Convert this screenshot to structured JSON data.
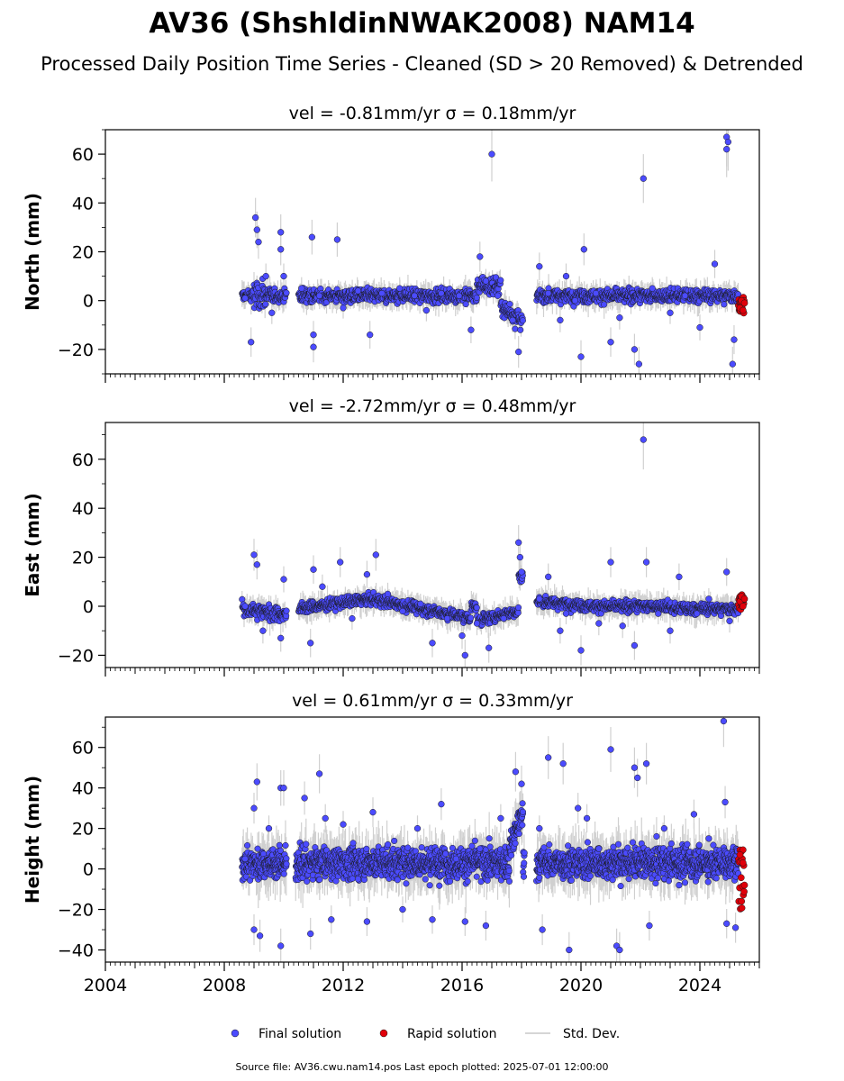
{
  "figure": {
    "title": "AV36 (ShshldinNWAK2008) NAM14",
    "subtitle": "Processed Daily Position Time Series - Cleaned (SD > 20 Removed) & Detrended",
    "footer": "Source file: AV36.cwu.nam14.pos  Last epoch plotted: 2025-07-01 12:00:00",
    "legend": [
      {
        "label": "Final solution",
        "color": "#4b4bff"
      },
      {
        "label": "Rapid solution",
        "color": "#e0000a"
      },
      {
        "label": "Std. Dev.",
        "color": "#cccccc"
      }
    ],
    "colors": {
      "final": "#4b4bff",
      "rapid": "#e0000a",
      "stddev": "#c8c8c8",
      "marker_edge": "#1a1a1a"
    }
  },
  "chart_data": [
    {
      "type": "scatter",
      "title": "vel = -0.81mm/yr   σ = 0.18mm/yr",
      "ylabel": "North (mm)",
      "xlim": [
        2004.0,
        2026.0
      ],
      "ylim": [
        -30,
        70
      ],
      "yticks": [
        -20,
        0,
        20,
        40,
        60
      ],
      "ytick_labels": [
        "−20",
        "0",
        "20",
        "40",
        "60"
      ],
      "xticks": [
        2004,
        2008,
        2012,
        2016,
        2020,
        2024
      ],
      "xtick_labels": [],
      "gaps": [
        [
          2010.1,
          2010.5
        ],
        [
          2018.05,
          2018.5
        ]
      ],
      "final_range": [
        2008.6,
        2025.3
      ],
      "rapid_range": [
        2025.3,
        2025.5
      ],
      "data_start": 2008.6,
      "data_end": 2025.5,
      "series": [
        {
          "name": "Final solution",
          "points": [
            [
              2008.7,
              1.0
            ],
            [
              2008.9,
              -17.0
            ],
            [
              2009.05,
              34.0
            ],
            [
              2009.1,
              29.0
            ],
            [
              2009.15,
              24.0
            ],
            [
              2009.4,
              10.0
            ],
            [
              2009.6,
              -5.0
            ],
            [
              2009.9,
              28.0
            ],
            [
              2009.9,
              21.0
            ],
            [
              2010.0,
              10.0
            ],
            [
              2010.6,
              5.0
            ],
            [
              2010.95,
              26.0
            ],
            [
              2011.0,
              -19.0
            ],
            [
              2011.0,
              -14.0
            ],
            [
              2011.2,
              2.0
            ],
            [
              2011.8,
              25.0
            ],
            [
              2012.0,
              -3.0
            ],
            [
              2012.5,
              4.0
            ],
            [
              2012.9,
              -14.0
            ],
            [
              2013.3,
              3.0
            ],
            [
              2013.9,
              5.0
            ],
            [
              2014.4,
              2.0
            ],
            [
              2014.8,
              -4.0
            ],
            [
              2015.3,
              3.0
            ],
            [
              2015.9,
              2.0
            ],
            [
              2016.3,
              -12.0
            ],
            [
              2016.6,
              18.0
            ],
            [
              2016.8,
              8.0
            ],
            [
              2017.0,
              60.0
            ],
            [
              2017.2,
              2.0
            ],
            [
              2017.7,
              -8.0
            ],
            [
              2017.9,
              -21.0
            ],
            [
              2018.6,
              14.0
            ],
            [
              2018.9,
              3.0
            ],
            [
              2019.3,
              -8.0
            ],
            [
              2019.5,
              10.0
            ],
            [
              2019.8,
              0.0
            ],
            [
              2020.0,
              -23.0
            ],
            [
              2020.1,
              21.0
            ],
            [
              2020.5,
              3.0
            ],
            [
              2021.0,
              -17.0
            ],
            [
              2021.3,
              -7.0
            ],
            [
              2021.8,
              -20.0
            ],
            [
              2021.95,
              -26.0
            ],
            [
              2022.1,
              50.0
            ],
            [
              2022.4,
              5.0
            ],
            [
              2023.0,
              -5.0
            ],
            [
              2023.5,
              2.0
            ],
            [
              2024.0,
              -11.0
            ],
            [
              2024.5,
              15.0
            ],
            [
              2024.9,
              67.0
            ],
            [
              2024.95,
              65.0
            ],
            [
              2024.9,
              62.0
            ],
            [
              2025.1,
              -26.0
            ],
            [
              2025.15,
              -16.0
            ]
          ]
        },
        {
          "name": "Rapid solution",
          "points": [
            [
              2025.35,
              -3.0
            ],
            [
              2025.4,
              0.0
            ],
            [
              2025.45,
              -4.0
            ],
            [
              2025.5,
              -1.0
            ]
          ]
        }
      ]
    },
    {
      "type": "scatter",
      "title": "vel = -2.72mm/yr   σ = 0.48mm/yr",
      "ylabel": "East (mm)",
      "xlim": [
        2004.0,
        2026.0
      ],
      "ylim": [
        -25,
        75
      ],
      "yticks": [
        -20,
        0,
        20,
        40,
        60
      ],
      "ytick_labels": [
        "−20",
        "0",
        "20",
        "40",
        "60"
      ],
      "xticks": [
        2004,
        2008,
        2012,
        2016,
        2020,
        2024
      ],
      "xtick_labels": [],
      "gaps": [
        [
          2010.1,
          2010.5
        ],
        [
          2018.05,
          2018.5
        ]
      ],
      "final_range": [
        2008.6,
        2025.3
      ],
      "rapid_range": [
        2025.3,
        2025.5
      ],
      "data_start": 2008.6,
      "data_end": 2025.5,
      "series": [
        {
          "name": "Final solution",
          "points": [
            [
              2008.7,
              0.0
            ],
            [
              2009.0,
              21.0
            ],
            [
              2009.1,
              17.0
            ],
            [
              2009.3,
              -10.0
            ],
            [
              2009.9,
              -13.0
            ],
            [
              2010.0,
              11.0
            ],
            [
              2010.9,
              -15.0
            ],
            [
              2011.0,
              15.0
            ],
            [
              2011.3,
              8.0
            ],
            [
              2011.9,
              18.0
            ],
            [
              2012.3,
              -5.0
            ],
            [
              2012.8,
              13.0
            ],
            [
              2013.1,
              21.0
            ],
            [
              2013.5,
              5.0
            ],
            [
              2014.0,
              -2.0
            ],
            [
              2014.6,
              1.0
            ],
            [
              2015.0,
              -15.0
            ],
            [
              2015.5,
              -5.0
            ],
            [
              2016.0,
              -12.0
            ],
            [
              2016.1,
              -20.0
            ],
            [
              2016.5,
              -7.0
            ],
            [
              2016.9,
              -17.0
            ],
            [
              2017.4,
              -5.0
            ],
            [
              2017.9,
              26.0
            ],
            [
              2017.95,
              20.0
            ],
            [
              2018.0,
              14.0
            ],
            [
              2018.6,
              3.0
            ],
            [
              2018.9,
              12.0
            ],
            [
              2019.3,
              -10.0
            ],
            [
              2019.5,
              -3.0
            ],
            [
              2020.0,
              -18.0
            ],
            [
              2020.6,
              -7.0
            ],
            [
              2021.0,
              18.0
            ],
            [
              2021.4,
              -8.0
            ],
            [
              2021.8,
              -16.0
            ],
            [
              2022.1,
              68.0
            ],
            [
              2022.2,
              18.0
            ],
            [
              2022.6,
              -3.0
            ],
            [
              2023.0,
              -10.0
            ],
            [
              2023.3,
              12.0
            ],
            [
              2023.9,
              -3.0
            ],
            [
              2024.3,
              3.0
            ],
            [
              2024.9,
              14.0
            ],
            [
              2025.0,
              -6.0
            ]
          ]
        },
        {
          "name": "Rapid solution",
          "points": [
            [
              2025.35,
              2.0
            ],
            [
              2025.4,
              4.0
            ],
            [
              2025.45,
              0.0
            ],
            [
              2025.5,
              3.0
            ]
          ]
        }
      ]
    },
    {
      "type": "scatter",
      "title": "vel = 0.61mm/yr   σ = 0.33mm/yr",
      "ylabel": "Height (mm)",
      "xlim": [
        2004.0,
        2026.0
      ],
      "ylim": [
        -46,
        75
      ],
      "yticks": [
        -40,
        -20,
        0,
        20,
        40,
        60
      ],
      "ytick_labels": [
        "−40",
        "−20",
        "0",
        "20",
        "40",
        "60"
      ],
      "xticks": [
        2004,
        2008,
        2012,
        2016,
        2020,
        2024
      ],
      "xtick_labels": [
        "2004",
        "2008",
        "2012",
        "2016",
        "2020",
        "2024"
      ],
      "gaps": [
        [
          2010.1,
          2010.4
        ],
        [
          2018.1,
          2018.5
        ]
      ],
      "final_range": [
        2008.6,
        2025.3
      ],
      "rapid_range": [
        2025.3,
        2025.5
      ],
      "data_start": 2008.6,
      "data_end": 2025.5,
      "series": [
        {
          "name": "Final solution",
          "points": [
            [
              2008.7,
              5.0
            ],
            [
              2009.0,
              30.0
            ],
            [
              2009.1,
              43.0
            ],
            [
              2009.0,
              -30.0
            ],
            [
              2009.2,
              -33.0
            ],
            [
              2009.5,
              20.0
            ],
            [
              2009.9,
              40.0
            ],
            [
              2010.0,
              40.0
            ],
            [
              2009.9,
              -38.0
            ],
            [
              2010.7,
              35.0
            ],
            [
              2010.9,
              -32.0
            ],
            [
              2011.2,
              47.0
            ],
            [
              2011.4,
              25.0
            ],
            [
              2011.6,
              -25.0
            ],
            [
              2012.0,
              22.0
            ],
            [
              2012.5,
              -5.0
            ],
            [
              2012.8,
              -26.0
            ],
            [
              2013.0,
              28.0
            ],
            [
              2013.5,
              12.0
            ],
            [
              2014.0,
              -20.0
            ],
            [
              2014.5,
              20.0
            ],
            [
              2015.0,
              -25.0
            ],
            [
              2015.3,
              32.0
            ],
            [
              2015.8,
              5.0
            ],
            [
              2016.1,
              -26.0
            ],
            [
              2016.6,
              10.0
            ],
            [
              2016.8,
              -28.0
            ],
            [
              2017.3,
              25.0
            ],
            [
              2017.8,
              48.0
            ],
            [
              2018.0,
              42.0
            ],
            [
              2018.6,
              20.0
            ],
            [
              2018.7,
              -30.0
            ],
            [
              2018.9,
              55.0
            ],
            [
              2019.4,
              52.0
            ],
            [
              2019.6,
              -40.0
            ],
            [
              2019.9,
              30.0
            ],
            [
              2020.2,
              25.0
            ],
            [
              2020.6,
              10.0
            ],
            [
              2021.0,
              59.0
            ],
            [
              2021.2,
              -38.0
            ],
            [
              2021.3,
              -40.0
            ],
            [
              2021.8,
              50.0
            ],
            [
              2021.9,
              45.0
            ],
            [
              2022.2,
              52.0
            ],
            [
              2022.3,
              -28.0
            ],
            [
              2022.8,
              20.0
            ],
            [
              2023.3,
              -8.0
            ],
            [
              2023.8,
              27.0
            ],
            [
              2024.3,
              15.0
            ],
            [
              2024.8,
              73.0
            ],
            [
              2024.85,
              33.0
            ],
            [
              2024.9,
              -27.0
            ],
            [
              2025.2,
              -29.0
            ]
          ]
        },
        {
          "name": "Rapid solution",
          "points": [
            [
              2025.35,
              7.0
            ],
            [
              2025.4,
              -16.0
            ],
            [
              2025.45,
              3.0
            ],
            [
              2025.5,
              -8.0
            ]
          ]
        }
      ]
    }
  ]
}
